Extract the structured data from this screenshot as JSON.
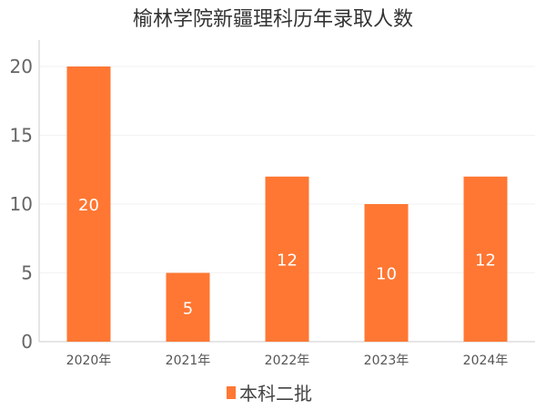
{
  "chart_data": {
    "type": "bar",
    "title": "榆林学院新疆理科历年录取人数",
    "categories": [
      "2020年",
      "2021年",
      "2022年",
      "2023年",
      "2024年"
    ],
    "series": [
      {
        "name": "本科二批",
        "values": [
          20,
          5,
          12,
          10,
          12
        ],
        "color": "#FF7733"
      }
    ],
    "xlabel": "",
    "ylabel": "",
    "ylim": [
      0,
      20
    ],
    "yticks": [
      0,
      5,
      10,
      15,
      20
    ],
    "grid": true,
    "legend_position": "bottom"
  }
}
